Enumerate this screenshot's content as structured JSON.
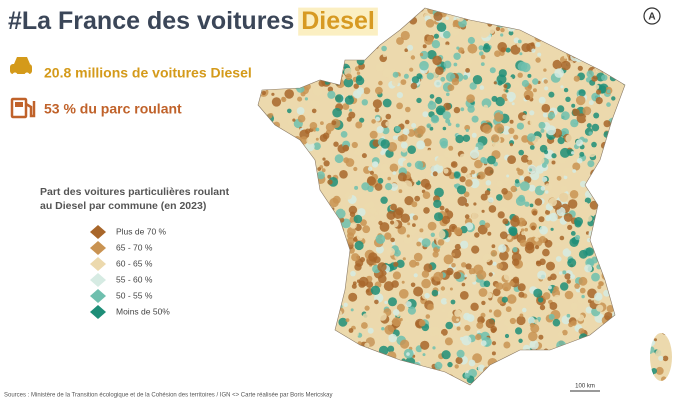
{
  "header": {
    "title_prefix": "#La France des voitures",
    "title_highlight": "Diesel",
    "logo": "A"
  },
  "stats": [
    "20.8 millions de voitures Diesel",
    "53 % du parc roulant"
  ],
  "legend": {
    "title_lines": [
      "Part des voitures particulières roulant",
      "au Diesel par commune (en 2023)"
    ],
    "items": [
      {
        "label": "Plus de 70 %",
        "color": "#a8662a"
      },
      {
        "label": "65 - 70 %",
        "color": "#c99352"
      },
      {
        "label": "60 - 65 %",
        "color": "#ecd9ad"
      },
      {
        "label": "55 - 60 %",
        "color": "#d6ebe3"
      },
      {
        "label": "50 - 55 %",
        "color": "#6fbfae"
      },
      {
        "label": "Moins de 50%",
        "color": "#1e8e78"
      }
    ]
  },
  "scale_label": "100 km",
  "source": "Sources : Ministère de la Transition écologique et de la Cohésion des territoires / IGN  <> Carte réalisée par Boris Mericskay"
}
